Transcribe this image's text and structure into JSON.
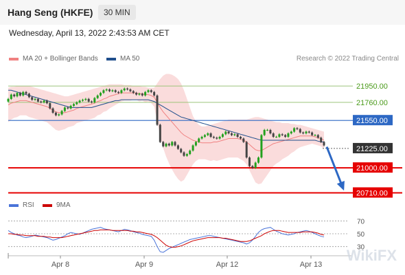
{
  "header": {
    "title": "Hang Seng (HKFE)",
    "timeframe": "30 MIN"
  },
  "datetime": "Wednesday, April 13, 2022 2:43:53 AM CET",
  "legend": [
    {
      "label": "MA 20 + Bollinger Bands",
      "color": "#f08080"
    },
    {
      "label": "MA 50",
      "color": "#1f4e8c"
    }
  ],
  "credit": "Research © 2022 Trading Central",
  "watermark": "WikiFX",
  "chart_data": [
    {
      "type": "line",
      "title": "",
      "x_ticks": [
        "Apr 8",
        "Apr 9",
        "Apr 12",
        "Apr 13"
      ],
      "ylim": [
        20650,
        22150
      ],
      "levels": [
        {
          "value": 21950,
          "label": "21950.00",
          "style": "resistance-green"
        },
        {
          "value": 21760,
          "label": "21760.00",
          "style": "resistance-green"
        },
        {
          "value": 21550,
          "label": "21550.00",
          "style": "pivot-blue"
        },
        {
          "value": 21225,
          "label": "21225.00",
          "style": "last-price"
        },
        {
          "value": 21000,
          "label": "21000.00",
          "style": "support-red"
        },
        {
          "value": 20710,
          "label": "20710.00",
          "style": "support-red"
        }
      ],
      "series": [
        {
          "name": "Price",
          "type": "candlestick",
          "values": [
            21800,
            21850,
            21830,
            21870,
            21840,
            21880,
            21860,
            21820,
            21790,
            21800,
            21770,
            21760,
            21780,
            21750,
            21690,
            21640,
            21610,
            21620,
            21660,
            21700,
            21690,
            21720,
            21740,
            21760,
            21780,
            21790,
            21800,
            21770,
            21760,
            21810,
            21840,
            21870,
            21900,
            21910,
            21890,
            21900,
            21880,
            21870,
            21900,
            21920,
            21910,
            21890,
            21870,
            21850,
            21860,
            21840,
            21880,
            21900,
            21880,
            21840,
            21500,
            21300,
            21250,
            21280,
            21260,
            21300,
            21260,
            21220,
            21180,
            21140,
            21160,
            21200,
            21260,
            21300,
            21340,
            21360,
            21380,
            21400,
            21360,
            21350,
            21340,
            21360,
            21390,
            21420,
            21400,
            21380,
            21390,
            21360,
            21340,
            21300,
            21120,
            21020,
            21000,
            21060,
            21120,
            21380,
            21440,
            21440,
            21400,
            21360,
            21360,
            21390,
            21380,
            21360,
            21400,
            21420,
            21460,
            21450,
            21410,
            21400,
            21420,
            21410,
            21380,
            21380,
            21350,
            21300,
            21260
          ]
        },
        {
          "name": "MA 20",
          "values": [
            21730,
            21750,
            21760,
            21770,
            21780,
            21780,
            21780,
            21770,
            21760,
            21750,
            21740,
            21730,
            21720,
            21710,
            21690,
            21670,
            21650,
            21640,
            21640,
            21640,
            21650,
            21660,
            21670,
            21690,
            21700,
            21710,
            21720,
            21730,
            21740,
            21750,
            21770,
            21780,
            21800,
            21810,
            21830,
            21840,
            21850,
            21860,
            21870,
            21870,
            21870,
            21870,
            21870,
            21870,
            21860,
            21860,
            21850,
            21850,
            21840,
            21820,
            21760,
            21700,
            21650,
            21610,
            21570,
            21530,
            21490,
            21450,
            21410,
            21380,
            21360,
            21340,
            21320,
            21310,
            21300,
            21290,
            21290,
            21290,
            21290,
            21300,
            21300,
            21310,
            21320,
            21330,
            21340,
            21340,
            21340,
            21340,
            21330,
            21320,
            21300,
            21270,
            21240,
            21210,
            21200,
            21200,
            21220,
            21240,
            21260,
            21280,
            21290,
            21300,
            21310,
            21320,
            21330,
            21340,
            21350,
            21360,
            21370,
            21370,
            21370,
            21370,
            21370,
            21360,
            21350,
            21340,
            21320
          ]
        },
        {
          "name": "BB Upper",
          "values": [
            21930,
            21940,
            21940,
            21950,
            21950,
            21950,
            21950,
            21950,
            21940,
            21930,
            21920,
            21910,
            21900,
            21890,
            21880,
            21870,
            21860,
            21850,
            21840,
            21830,
            21830,
            21840,
            21850,
            21860,
            21870,
            21880,
            21890,
            21900,
            21910,
            21920,
            21930,
            21940,
            21950,
            21960,
            21970,
            21970,
            21970,
            21970,
            21970,
            21960,
            21960,
            21960,
            21950,
            21950,
            21950,
            21940,
            21940,
            21930,
            21930,
            21930,
            21980,
            22030,
            22070,
            22090,
            22090,
            22080,
            22060,
            22030,
            21980,
            21900,
            21800,
            21700,
            21600,
            21540,
            21500,
            21480,
            21480,
            21490,
            21500,
            21510,
            21520,
            21530,
            21540,
            21550,
            21560,
            21560,
            21560,
            21560,
            21560,
            21560,
            21560,
            21570,
            21580,
            21590,
            21590,
            21580,
            21570,
            21560,
            21550,
            21540,
            21530,
            21530,
            21520,
            21520,
            21520,
            21510,
            21510,
            21500,
            21500,
            21490,
            21480,
            21470,
            21460,
            21450,
            21440,
            21430,
            21420
          ]
        },
        {
          "name": "BB Lower",
          "values": [
            21530,
            21560,
            21580,
            21590,
            21610,
            21610,
            21610,
            21590,
            21580,
            21570,
            21560,
            21550,
            21540,
            21530,
            21500,
            21470,
            21440,
            21430,
            21440,
            21450,
            21470,
            21480,
            21490,
            21520,
            21530,
            21540,
            21550,
            21560,
            21570,
            21580,
            21610,
            21620,
            21650,
            21660,
            21690,
            21710,
            21730,
            21750,
            21770,
            21780,
            21780,
            21780,
            21790,
            21790,
            21770,
            21780,
            21760,
            21770,
            21750,
            21710,
            21540,
            21370,
            21230,
            21130,
            21050,
            20980,
            20920,
            20870,
            20840,
            20860,
            20920,
            20980,
            21040,
            21080,
            21100,
            21100,
            21100,
            21090,
            21080,
            21090,
            21080,
            21090,
            21100,
            21110,
            21120,
            21120,
            21120,
            21120,
            21100,
            21080,
            21040,
            20970,
            20900,
            20830,
            20810,
            20820,
            20870,
            20920,
            20970,
            21020,
            21050,
            21070,
            21100,
            21120,
            21140,
            21170,
            21190,
            21220,
            21240,
            21250,
            21260,
            21270,
            21280,
            21270,
            21260,
            21250,
            21220
          ]
        },
        {
          "name": "MA 50",
          "values": [
            21900,
            21900,
            21890,
            21880,
            21870,
            21860,
            21850,
            21840,
            21830,
            21820,
            21810,
            21800,
            21790,
            21780,
            21770,
            21760,
            21750,
            21740,
            21730,
            21720,
            21710,
            21700,
            21700,
            21700,
            21700,
            21700,
            21700,
            21700,
            21700,
            21710,
            21720,
            21730,
            21740,
            21750,
            21760,
            21770,
            21780,
            21780,
            21790,
            21790,
            21790,
            21790,
            21790,
            21790,
            21790,
            21790,
            21790,
            21790,
            21780,
            21770,
            21750,
            21730,
            21710,
            21690,
            21670,
            21650,
            21630,
            21610,
            21590,
            21580,
            21570,
            21560,
            21550,
            21540,
            21530,
            21520,
            21510,
            21500,
            21490,
            21480,
            21470,
            21460,
            21450,
            21440,
            21430,
            21420,
            21410,
            21400,
            21390,
            21380,
            21370,
            21360,
            21350,
            21340,
            21330,
            21320,
            21320,
            21320,
            21320,
            21320,
            21320,
            21320,
            21320,
            21320,
            21320,
            21320,
            21320,
            21320,
            21320,
            21320,
            21320,
            21320,
            21320,
            21320,
            21310,
            21300,
            21300
          ]
        }
      ]
    },
    {
      "type": "line",
      "title": "",
      "ylim": [
        20,
        80
      ],
      "y_ticks": [
        70,
        50,
        30
      ],
      "levels": [
        70,
        50,
        30
      ],
      "legend": [
        {
          "label": "RSI",
          "color": "#4a74d9"
        },
        {
          "label": "9MA",
          "color": "#cc0000"
        }
      ],
      "series": [
        {
          "name": "RSI",
          "values": [
            55,
            52,
            50,
            48,
            47,
            45,
            44,
            45,
            46,
            48,
            47,
            46,
            45,
            44,
            42,
            40,
            41,
            43,
            45,
            47,
            50,
            52,
            51,
            50,
            49,
            51,
            53,
            55,
            57,
            58,
            59,
            60,
            58,
            57,
            56,
            55,
            54,
            53,
            55,
            57,
            56,
            55,
            53,
            52,
            51,
            49,
            48,
            47,
            46,
            40,
            30,
            22,
            21,
            24,
            27,
            29,
            31,
            33,
            35,
            37,
            39,
            41,
            42,
            43,
            44,
            45,
            46,
            47,
            47,
            46,
            45,
            44,
            43,
            42,
            41,
            40,
            39,
            38,
            37,
            36,
            34,
            36,
            40,
            46,
            52,
            56,
            58,
            59,
            60,
            57,
            54,
            52,
            50,
            49,
            48,
            49,
            50,
            52,
            53,
            54,
            55,
            54,
            52,
            50,
            48,
            46,
            45
          ]
        },
        {
          "name": "9MA",
          "values": [
            50,
            50,
            49,
            49,
            48,
            48,
            47,
            47,
            47,
            47,
            46,
            46,
            46,
            45,
            45,
            44,
            44,
            44,
            44,
            45,
            46,
            47,
            48,
            49,
            50,
            51,
            52,
            53,
            54,
            55,
            55,
            56,
            56,
            56,
            56,
            55,
            55,
            55,
            55,
            55,
            55,
            54,
            54,
            53,
            53,
            52,
            51,
            50,
            49,
            47,
            44,
            40,
            36,
            32,
            30,
            29,
            29,
            30,
            31,
            33,
            35,
            37,
            39,
            40,
            41,
            42,
            43,
            44,
            44,
            44,
            44,
            44,
            43,
            43,
            42,
            41,
            40,
            39,
            38,
            38,
            38,
            39,
            41,
            43,
            45,
            47,
            50,
            52,
            54,
            55,
            55,
            55,
            54,
            53,
            52,
            52,
            52,
            52,
            52,
            53,
            53,
            53,
            53,
            52,
            51,
            49,
            48
          ]
        }
      ]
    }
  ]
}
